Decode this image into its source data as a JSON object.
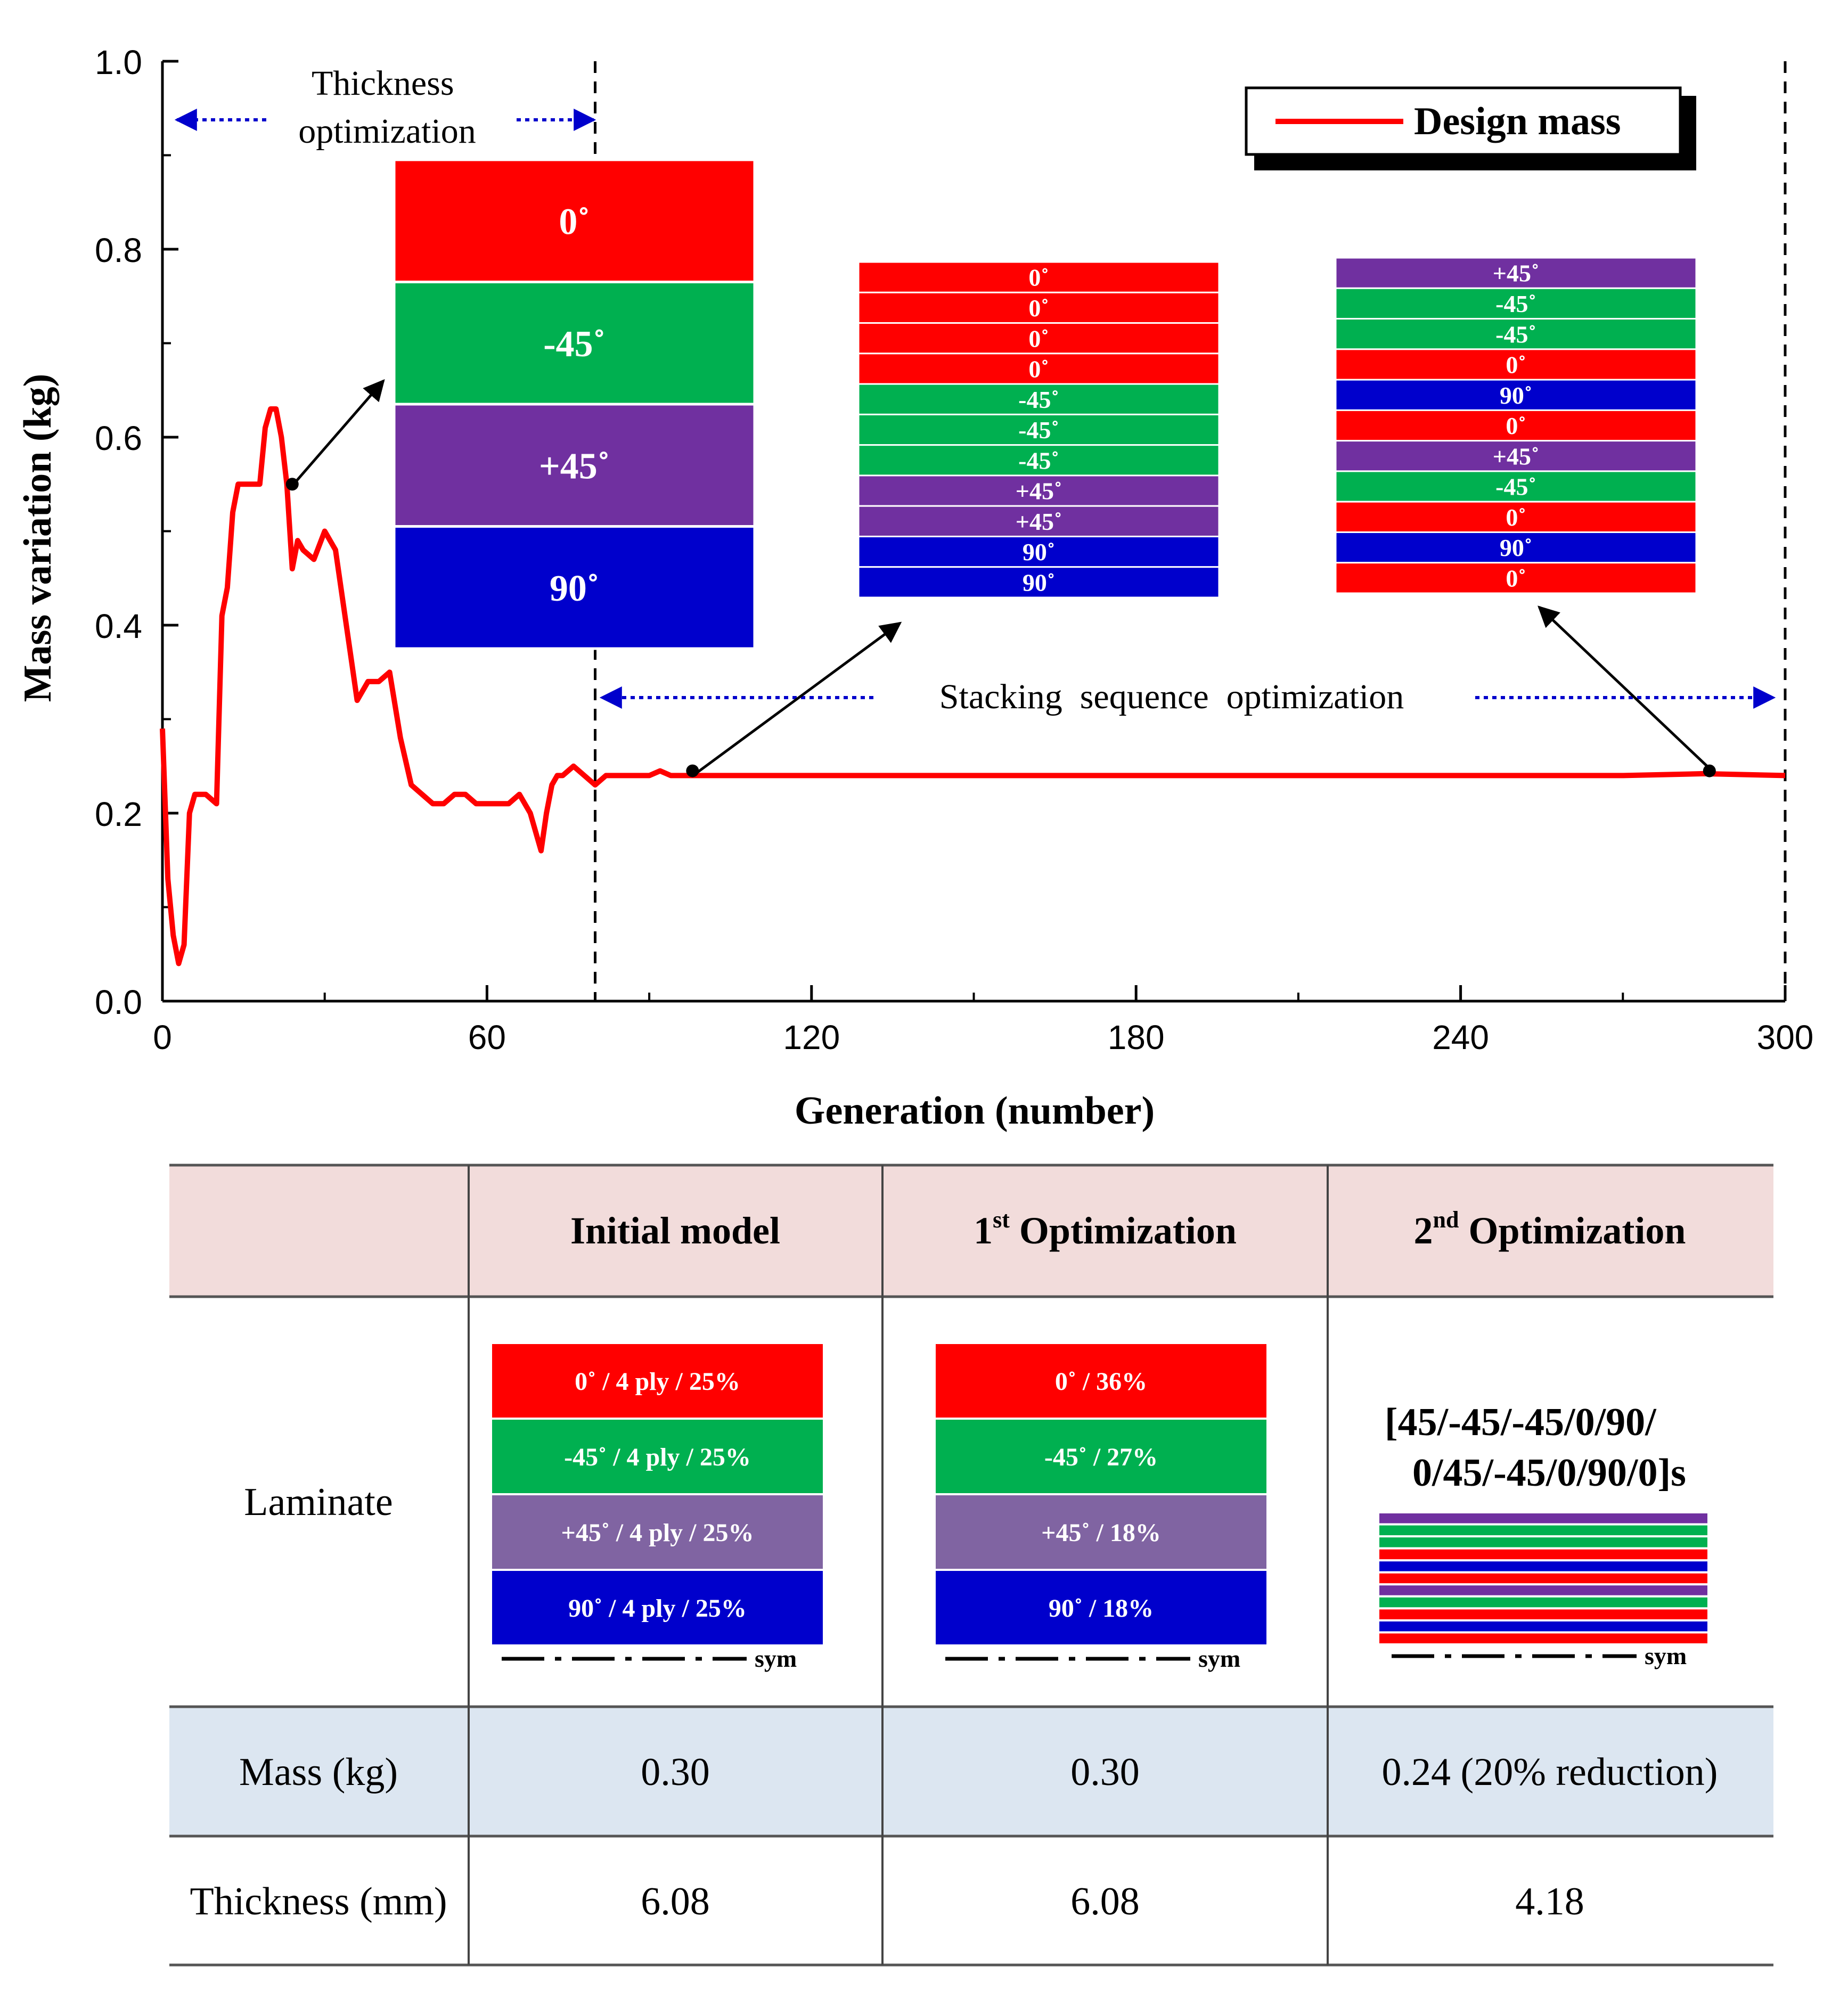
{
  "chart_data": {
    "type": "line",
    "title": "",
    "xlabel": "Generation (number)",
    "ylabel": "Mass variation (kg)",
    "xlim": [
      0,
      300
    ],
    "ylim": [
      0.0,
      1.0
    ],
    "xticks": [
      "0",
      "60",
      "120",
      "180",
      "240",
      "300"
    ],
    "yticks": [
      "0.0",
      "0.2",
      "0.4",
      "0.6",
      "0.8",
      "1.0"
    ],
    "legend": {
      "label": "Design mass",
      "position": "top-right"
    },
    "series": [
      {
        "name": "Design mass",
        "color": "#ff0000",
        "x": [
          0,
          1,
          2,
          3,
          4,
          5,
          6,
          8,
          10,
          11,
          12,
          13,
          14,
          16,
          18,
          19,
          20,
          21,
          22,
          23,
          24,
          25,
          26,
          28,
          30,
          32,
          34,
          35,
          36,
          38,
          40,
          42,
          44,
          46,
          48,
          50,
          52,
          54,
          56,
          58,
          60,
          62,
          64,
          66,
          68,
          70,
          71,
          72,
          73,
          74,
          76,
          78,
          80,
          82,
          84,
          86,
          88,
          90,
          92,
          94,
          96,
          100,
          120,
          150,
          180,
          210,
          240,
          270,
          285,
          300
        ],
        "values": [
          0.29,
          0.13,
          0.07,
          0.04,
          0.06,
          0.2,
          0.22,
          0.22,
          0.21,
          0.41,
          0.44,
          0.52,
          0.55,
          0.55,
          0.55,
          0.61,
          0.63,
          0.63,
          0.6,
          0.55,
          0.46,
          0.49,
          0.48,
          0.47,
          0.5,
          0.48,
          0.4,
          0.36,
          0.32,
          0.34,
          0.34,
          0.35,
          0.28,
          0.23,
          0.22,
          0.21,
          0.21,
          0.22,
          0.22,
          0.21,
          0.21,
          0.21,
          0.21,
          0.22,
          0.2,
          0.16,
          0.2,
          0.23,
          0.24,
          0.24,
          0.25,
          0.24,
          0.23,
          0.24,
          0.24,
          0.24,
          0.24,
          0.24,
          0.245,
          0.24,
          0.24,
          0.24,
          0.24,
          0.24,
          0.24,
          0.24,
          0.24,
          0.24,
          0.242,
          0.24
        ]
      }
    ],
    "phase_boundaries": [
      80,
      300
    ],
    "phases": {
      "thickness": "Thickness\noptimization",
      "stacking": "Stacking  sequence  optimization"
    },
    "marker_points": [
      {
        "x": 24,
        "y": 0.55
      },
      {
        "x": 98,
        "y": 0.245
      },
      {
        "x": 286,
        "y": 0.245
      }
    ],
    "insets": [
      {
        "plies": [
          {
            "label": "0˚",
            "color": "#ff0000"
          },
          {
            "label": "-45˚",
            "color": "#00b050"
          },
          {
            "label": "+45˚",
            "color": "#7030a0"
          },
          {
            "label": "90˚",
            "color": "#0000cc"
          }
        ]
      },
      {
        "plies": [
          {
            "label": "0˚",
            "color": "#ff0000"
          },
          {
            "label": "0˚",
            "color": "#ff0000"
          },
          {
            "label": "0˚",
            "color": "#ff0000"
          },
          {
            "label": "0˚",
            "color": "#ff0000"
          },
          {
            "label": "-45˚",
            "color": "#00b050"
          },
          {
            "label": "-45˚",
            "color": "#00b050"
          },
          {
            "label": "-45˚",
            "color": "#00b050"
          },
          {
            "label": "+45˚",
            "color": "#7030a0"
          },
          {
            "label": "+45˚",
            "color": "#7030a0"
          },
          {
            "label": "90˚",
            "color": "#0000cc"
          },
          {
            "label": "90˚",
            "color": "#0000cc"
          }
        ]
      },
      {
        "plies": [
          {
            "label": "+45˚",
            "color": "#7030a0"
          },
          {
            "label": "-45˚",
            "color": "#00b050"
          },
          {
            "label": "-45˚",
            "color": "#00b050"
          },
          {
            "label": "0˚",
            "color": "#ff0000"
          },
          {
            "label": "90˚",
            "color": "#0000cc"
          },
          {
            "label": "0˚",
            "color": "#ff0000"
          },
          {
            "label": "+45˚",
            "color": "#7030a0"
          },
          {
            "label": "-45˚",
            "color": "#00b050"
          },
          {
            "label": "0˚",
            "color": "#ff0000"
          },
          {
            "label": "90˚",
            "color": "#0000cc"
          },
          {
            "label": "0˚",
            "color": "#ff0000"
          }
        ]
      }
    ]
  },
  "table": {
    "header": {
      "col1": "Initial model",
      "col2_sup": "st",
      "col2_prefix": "1",
      "col2_rest": "Optimization",
      "col3_sup": "nd",
      "col3_prefix": "2",
      "col3_rest": "Optimization"
    },
    "laminate_label": "Laminate",
    "initial_plies": [
      {
        "label": "0˚   / 4 ply / 25%",
        "color": "#ff0000"
      },
      {
        "label": "-45˚   / 4 ply / 25%",
        "color": "#00b050"
      },
      {
        "label": "+45˚   / 4 ply / 25%",
        "color": "#8064a2"
      },
      {
        "label": "90˚   / 4 ply /  25%",
        "color": "#0000cc"
      }
    ],
    "first_plies": [
      {
        "label": "0˚   /  36%",
        "color": "#ff0000"
      },
      {
        "label": "-45˚   /  27%",
        "color": "#00b050"
      },
      {
        "label": "+45˚   /  18%",
        "color": "#8064a2"
      },
      {
        "label": "90˚   /  18%",
        "color": "#0000cc"
      }
    ],
    "second_sequence_line1": "[45/-45/-45/0/90/",
    "second_sequence_line2": "0/45/-45/0/90/0]s",
    "second_stripes": [
      "#7030a0",
      "#00b050",
      "#00b050",
      "#ff0000",
      "#0000cc",
      "#ff0000",
      "#7030a0",
      "#00b050",
      "#ff0000",
      "#0000cc",
      "#ff0000"
    ],
    "sym_label": "sym",
    "rows": [
      {
        "label": "Mass (kg)",
        "values": [
          "0.30",
          "0.30",
          "0.24 (20% reduction)"
        ]
      },
      {
        "label": "Thickness (mm)",
        "values": [
          "6.08",
          "6.08",
          "4.18"
        ]
      }
    ],
    "colors": {
      "header_bg": "#f2dcdb",
      "mass_bg": "#dce6f1"
    }
  }
}
